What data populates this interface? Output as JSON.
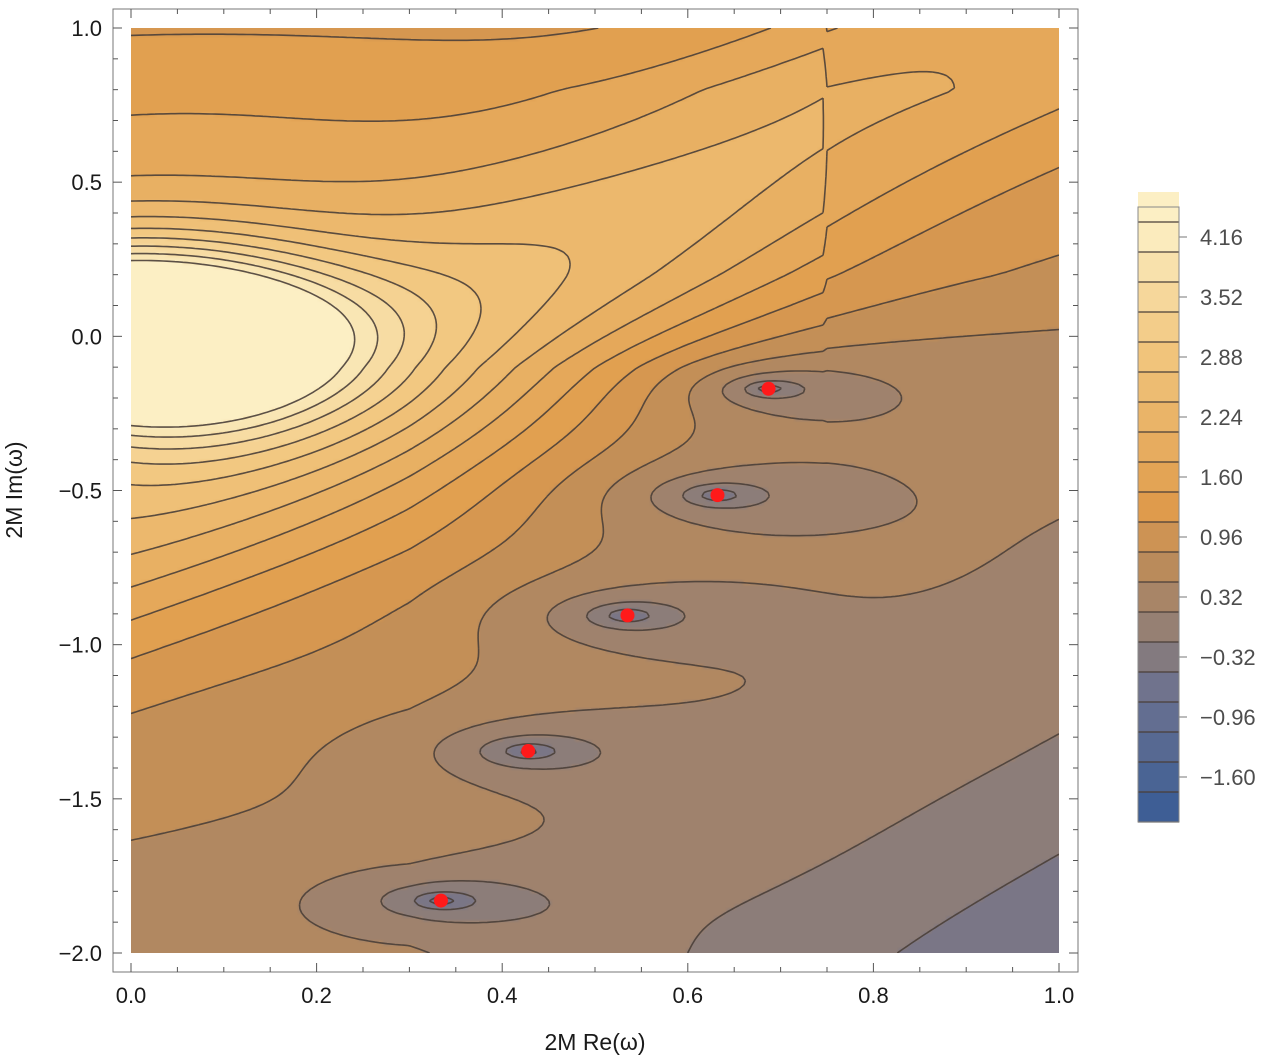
{
  "chart_data": {
    "type": "contour",
    "title": "",
    "xlabel": "2M Re(ω)",
    "ylabel": "2M Im(ω)",
    "xlim": [
      0.0,
      1.0
    ],
    "ylim": [
      -2.0,
      1.0
    ],
    "x_ticks": [
      {
        "value": 0.0,
        "label": "0.0"
      },
      {
        "value": 0.2,
        "label": "0.2"
      },
      {
        "value": 0.4,
        "label": "0.4"
      },
      {
        "value": 0.6,
        "label": "0.6"
      },
      {
        "value": 0.8,
        "label": "0.8"
      },
      {
        "value": 1.0,
        "label": "1.0"
      }
    ],
    "y_ticks": [
      {
        "value": 1.0,
        "label": "1.0"
      },
      {
        "value": 0.5,
        "label": "0.5"
      },
      {
        "value": 0.0,
        "label": "0.0"
      },
      {
        "value": -0.5,
        "label": "−0.5"
      },
      {
        "value": -1.0,
        "label": "−1.0"
      },
      {
        "value": -1.5,
        "label": "−1.5"
      },
      {
        "value": -2.0,
        "label": "−2.0"
      }
    ],
    "legend": {
      "placement": "right",
      "min": -2.08,
      "max": 4.48,
      "labels": [
        {
          "value": 4.16,
          "label": "4.16"
        },
        {
          "value": 3.52,
          "label": "3.52"
        },
        {
          "value": 2.88,
          "label": "2.88"
        },
        {
          "value": 2.24,
          "label": "2.24"
        },
        {
          "value": 1.6,
          "label": "1.60"
        },
        {
          "value": 0.96,
          "label": "0.96"
        },
        {
          "value": 0.32,
          "label": "0.32"
        },
        {
          "value": -0.32,
          "label": "−0.32"
        },
        {
          "value": -0.96,
          "label": "−0.96"
        },
        {
          "value": -1.6,
          "label": "−1.60"
        }
      ]
    },
    "poles": [
      {
        "x": 0.0,
        "y": 0.0,
        "height": 6.0,
        "spread": 0.2
      }
    ],
    "zeros": [
      {
        "x": 0.687,
        "y": -0.17
      },
      {
        "x": 0.632,
        "y": -0.515
      },
      {
        "x": 0.535,
        "y": -0.905
      },
      {
        "x": 0.428,
        "y": -1.345
      },
      {
        "x": 0.334,
        "y": -1.83
      }
    ],
    "marker_color": "#ff1a1a",
    "colors": {
      "high": "#fdf5cf",
      "mid": "#e09c4c",
      "neutral": "#8a7c7a",
      "low": "#335a96"
    }
  }
}
